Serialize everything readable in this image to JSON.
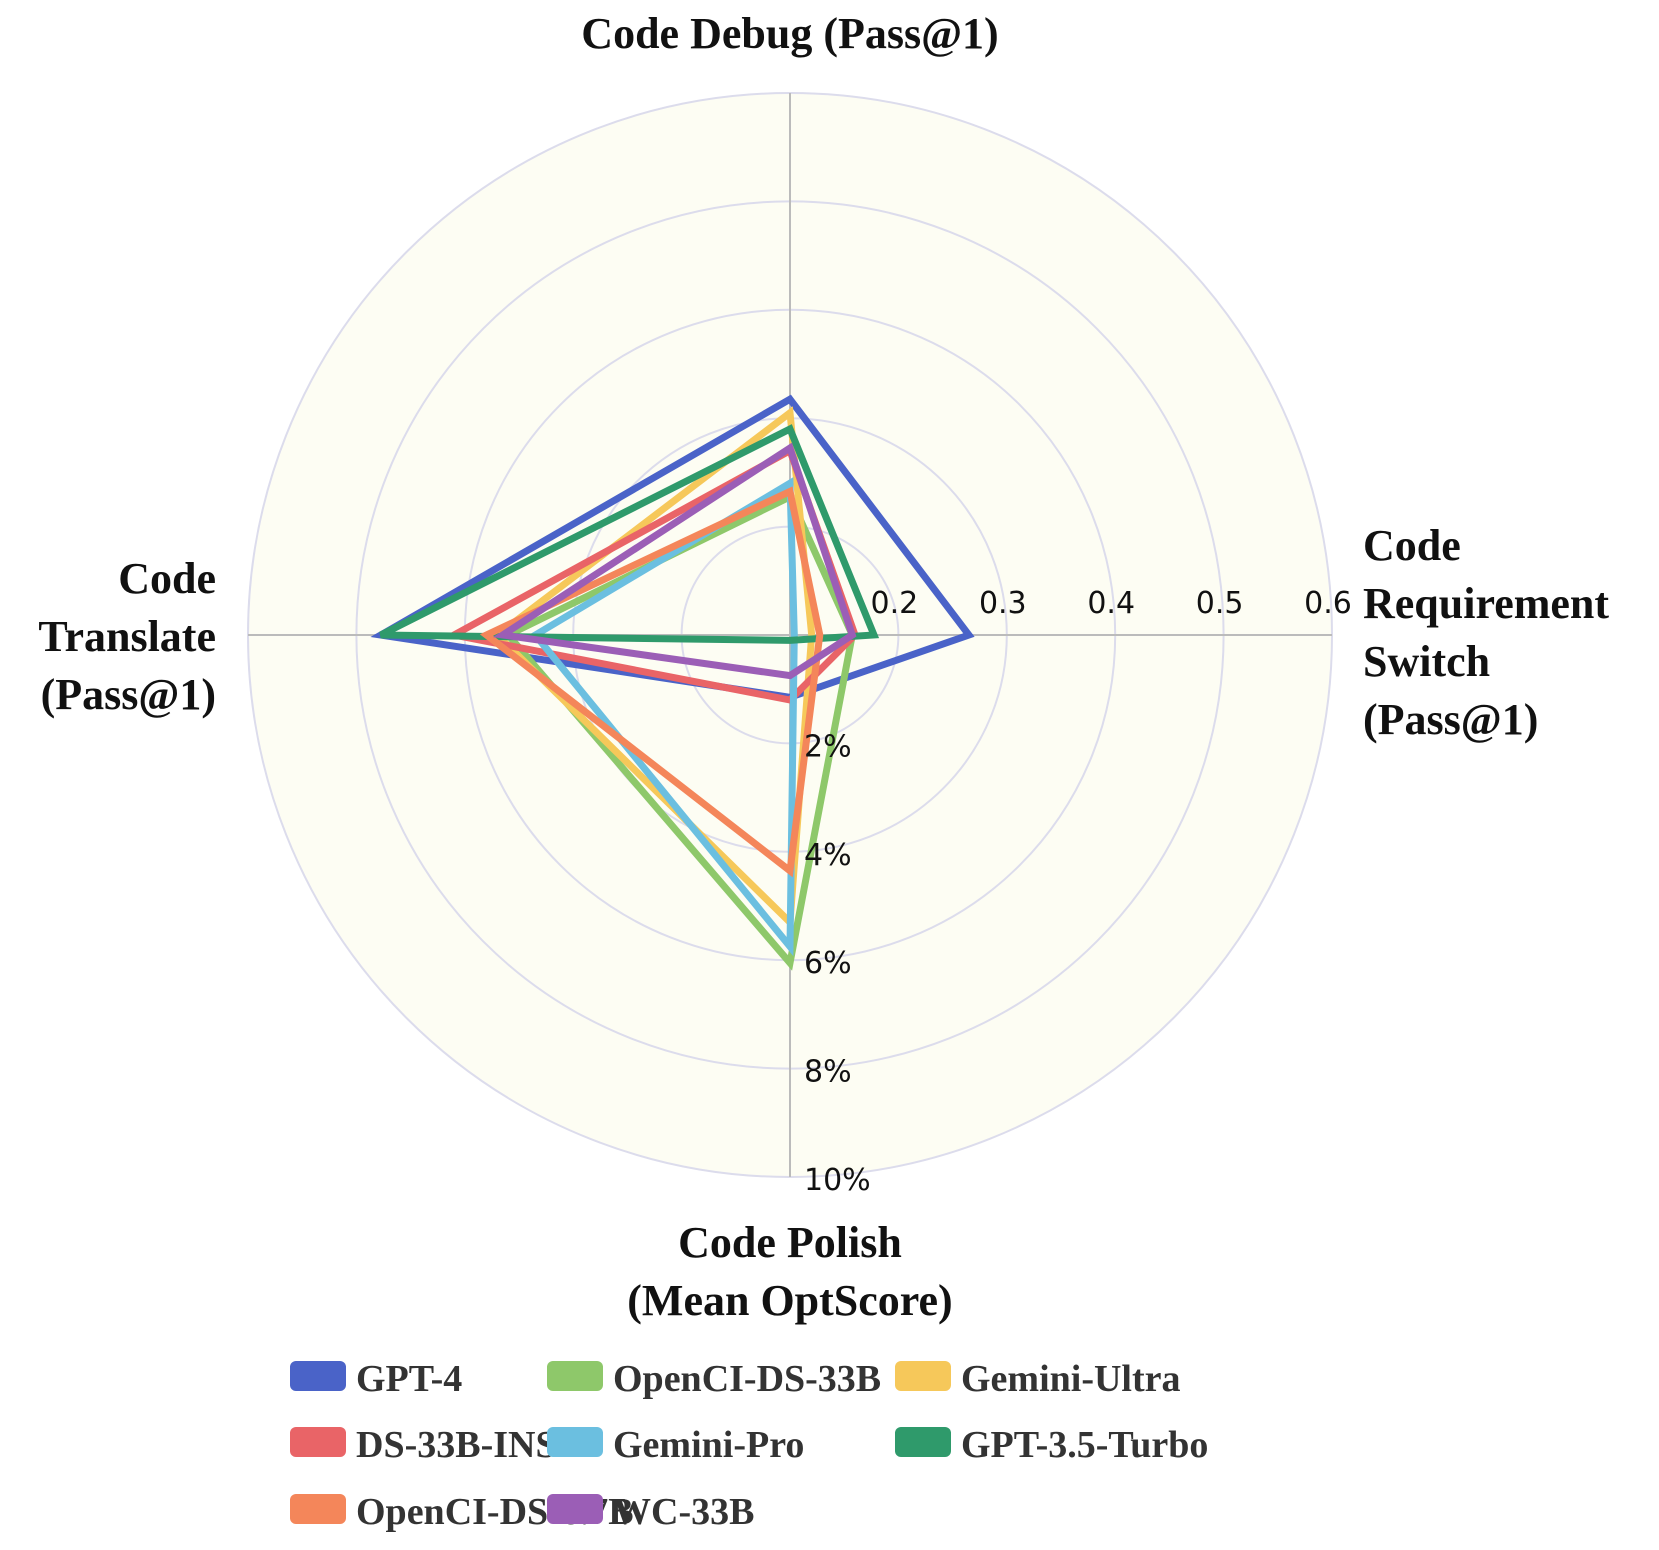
{
  "chart_data": {
    "type": "radar",
    "axes": [
      {
        "key": "debug",
        "label_lines": [
          "Code Debug (Pass@1)"
        ]
      },
      {
        "key": "req",
        "label_lines": [
          "Code",
          "Requirement",
          "Switch",
          "(Pass@1)"
        ]
      },
      {
        "key": "polish",
        "label_lines": [
          "Code Polish",
          "(Mean OptScore)"
        ]
      },
      {
        "key": "translate",
        "label_lines": [
          "Code",
          "Translate",
          "(Pass@1)"
        ]
      }
    ],
    "radial_ticks": {
      "right": [
        "0.2",
        "0.3",
        "0.4",
        "0.5",
        "0.6"
      ],
      "down": [
        "2%",
        "4%",
        "6%",
        "8%",
        "10%"
      ]
    },
    "scale_note": "radius fraction of outer ring per axis value",
    "series": [
      {
        "name": "GPT-4",
        "color": "#4a63c8",
        "values": {
          "debug": 0.435,
          "req": 0.33,
          "polish": 0.115,
          "translate": 0.755
        }
      },
      {
        "name": "OpenCI-DS-33B",
        "color": "#8ec86a",
        "values": {
          "debug": 0.255,
          "req": 0.115,
          "polish": 0.605,
          "translate": 0.52
        }
      },
      {
        "name": "Gemini-Ultra",
        "color": "#f6c85a",
        "values": {
          "debug": 0.41,
          "req": 0.04,
          "polish": 0.53,
          "translate": 0.54
        }
      },
      {
        "name": "DS-33B-INST",
        "color": "#e96467",
        "values": {
          "debug": 0.34,
          "req": 0.12,
          "polish": 0.12,
          "translate": 0.62
        }
      },
      {
        "name": "Gemini-Pro",
        "color": "#6bbfe0",
        "values": {
          "debug": 0.28,
          "req": 0.008,
          "polish": 0.575,
          "translate": 0.47
        }
      },
      {
        "name": "GPT-3.5-Turbo",
        "color": "#2f9a6b",
        "values": {
          "debug": 0.38,
          "req": 0.155,
          "polish": 0.01,
          "translate": 0.755
        }
      },
      {
        "name": "OpenCI-DS-6.7B",
        "color": "#f4865a",
        "values": {
          "debug": 0.265,
          "req": 0.055,
          "polish": 0.435,
          "translate": 0.56
        }
      },
      {
        "name": "WC-33B",
        "color": "#9b5eb6",
        "values": {
          "debug": 0.345,
          "req": 0.115,
          "polish": 0.075,
          "translate": 0.53
        }
      }
    ],
    "legend_rows": [
      [
        "GPT-4",
        "OpenCI-DS-33B",
        "Gemini-Ultra"
      ],
      [
        "DS-33B-INST",
        "Gemini-Pro",
        "GPT-3.5-Turbo"
      ],
      [
        "OpenCI-DS-6.7B",
        "WC-33B"
      ]
    ],
    "background_color": "#fdfdf3",
    "grid_color": "#dcdcec",
    "axis_line_color": "#bbbbbb"
  }
}
